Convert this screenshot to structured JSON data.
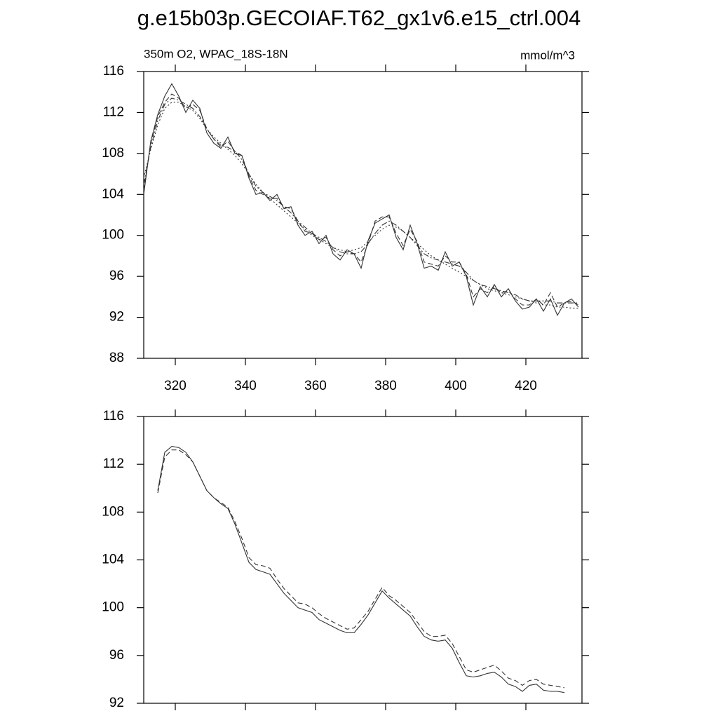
{
  "title": "g.e15b03p.GECOIAF.T62_gx1v6.e15_ctrl.004",
  "chart_data": [
    {
      "type": "line",
      "subtitle_left": "350m O2, WPAC_18S-18N",
      "subtitle_right": "mmol/m^3",
      "xlim": [
        311,
        436
      ],
      "ylim": [
        88,
        116
      ],
      "xticks": [
        320,
        340,
        360,
        380,
        400,
        420
      ],
      "yticks": [
        88,
        92,
        96,
        100,
        104,
        108,
        112,
        116
      ],
      "show_xtick_labels": true,
      "x": [
        311,
        313,
        315,
        317,
        319,
        321,
        323,
        325,
        327,
        329,
        331,
        333,
        335,
        337,
        339,
        341,
        343,
        345,
        347,
        349,
        351,
        353,
        355,
        357,
        359,
        361,
        363,
        365,
        367,
        369,
        371,
        373,
        375,
        377,
        379,
        381,
        383,
        385,
        387,
        389,
        391,
        393,
        395,
        397,
        399,
        401,
        403,
        405,
        407,
        409,
        411,
        413,
        415,
        417,
        419,
        421,
        423,
        425,
        427,
        429,
        431,
        433,
        435
      ],
      "series": [
        {
          "color": "#333333",
          "dash": "none",
          "values": [
            104.0,
            109.2,
            111.8,
            113.6,
            114.8,
            113.6,
            112.0,
            113.2,
            112.4,
            110.0,
            109.0,
            108.5,
            109.6,
            108.0,
            107.8,
            105.6,
            104.0,
            104.2,
            103.4,
            104.0,
            102.6,
            102.8,
            101.0,
            100.0,
            100.4,
            99.2,
            100.0,
            98.2,
            97.6,
            98.6,
            98.2,
            96.8,
            99.5,
            101.2,
            101.6,
            102.0,
            99.8,
            98.6,
            101.0,
            99.2,
            96.8,
            97.0,
            96.6,
            98.4,
            97.0,
            97.4,
            96.0,
            93.2,
            95.0,
            94.0,
            95.2,
            94.0,
            94.8,
            93.6,
            92.8,
            93.0,
            93.8,
            92.6,
            93.8,
            92.2,
            93.4,
            93.8,
            93.0
          ]
        },
        {
          "color": "#333333",
          "dash": "7,4",
          "values": [
            104.4,
            109.0,
            111.6,
            113.0,
            113.8,
            113.4,
            112.4,
            112.8,
            112.2,
            110.4,
            109.4,
            108.6,
            109.2,
            108.2,
            107.8,
            105.8,
            104.4,
            104.0,
            103.6,
            103.6,
            102.8,
            102.6,
            101.4,
            100.4,
            100.2,
            99.6,
            99.8,
            98.6,
            98.0,
            98.4,
            98.2,
            97.4,
            99.2,
            101.4,
            101.8,
            101.8,
            100.2,
            99.0,
            100.6,
            99.4,
            97.4,
            97.2,
            97.0,
            98.0,
            97.4,
            97.4,
            96.2,
            94.0,
            94.8,
            94.4,
            95.0,
            94.4,
            94.6,
            93.8,
            93.2,
            93.2,
            93.8,
            93.2,
            94.4,
            93.0,
            93.4,
            93.6,
            93.2
          ]
        },
        {
          "color": "#333333",
          "dash": "8,3,2,3",
          "values": [
            105.0,
            108.6,
            111.2,
            112.8,
            113.4,
            113.2,
            112.8,
            112.4,
            111.6,
            110.4,
            109.4,
            108.8,
            108.6,
            108.2,
            107.4,
            106.0,
            104.8,
            104.2,
            103.8,
            103.4,
            102.8,
            102.2,
            101.4,
            100.8,
            100.2,
            99.8,
            99.4,
            98.8,
            98.4,
            98.2,
            98.2,
            98.4,
            99.2,
            100.2,
            101.0,
            101.4,
            101.0,
            100.4,
            99.8,
            99.0,
            98.2,
            97.8,
            97.6,
            97.4,
            97.2,
            97.0,
            96.4,
            95.6,
            95.2,
            95.0,
            94.8,
            94.6,
            94.4,
            94.2,
            93.8,
            93.6,
            93.6,
            93.6,
            93.6,
            93.4,
            93.4,
            93.4,
            93.4
          ]
        },
        {
          "color": "#333333",
          "dash": "2,3",
          "values": [
            105.6,
            108.4,
            110.8,
            112.4,
            113.0,
            113.0,
            112.6,
            112.2,
            111.4,
            110.4,
            109.6,
            109.0,
            108.4,
            107.8,
            107.0,
            106.0,
            105.0,
            104.2,
            103.6,
            103.0,
            102.4,
            101.8,
            101.2,
            100.6,
            100.0,
            99.6,
            99.2,
            98.8,
            98.6,
            98.4,
            98.6,
            98.8,
            99.4,
            100.0,
            100.6,
            101.0,
            100.8,
            100.4,
            99.8,
            99.2,
            98.6,
            98.0,
            97.6,
            97.2,
            96.8,
            96.4,
            96.0,
            95.6,
            95.2,
            94.8,
            94.6,
            94.4,
            94.2,
            94.0,
            93.8,
            93.6,
            93.4,
            93.2,
            93.2,
            93.0,
            93.0,
            92.9,
            92.9
          ]
        }
      ]
    },
    {
      "type": "line",
      "xlim": [
        311,
        436
      ],
      "ylim": [
        92,
        116
      ],
      "xticks": [
        320,
        340,
        360,
        380,
        400,
        420
      ],
      "yticks": [
        92,
        96,
        100,
        104,
        108,
        112,
        116
      ],
      "show_xtick_labels": false,
      "x": [
        315,
        317,
        319,
        321,
        323,
        325,
        327,
        329,
        331,
        333,
        335,
        337,
        339,
        341,
        343,
        345,
        347,
        349,
        351,
        353,
        355,
        357,
        359,
        361,
        363,
        365,
        367,
        369,
        371,
        373,
        375,
        377,
        379,
        381,
        383,
        385,
        387,
        389,
        391,
        393,
        395,
        397,
        399,
        401,
        403,
        405,
        407,
        409,
        411,
        413,
        415,
        417,
        419,
        421,
        423,
        425,
        427,
        429,
        431
      ],
      "series": [
        {
          "color": "#333333",
          "dash": "none",
          "values": [
            109.8,
            113.0,
            113.5,
            113.4,
            113.0,
            112.2,
            111.0,
            109.8,
            109.2,
            108.7,
            108.3,
            107.0,
            105.4,
            103.8,
            103.2,
            103.0,
            102.8,
            102.0,
            101.2,
            100.6,
            100.0,
            99.8,
            99.6,
            99.0,
            98.7,
            98.4,
            98.1,
            97.9,
            97.9,
            98.6,
            99.4,
            100.4,
            101.4,
            100.8,
            100.3,
            99.8,
            99.3,
            98.4,
            97.6,
            97.3,
            97.2,
            97.3,
            96.6,
            95.4,
            94.3,
            94.2,
            94.3,
            94.5,
            94.6,
            94.2,
            93.6,
            93.4,
            93.0,
            93.5,
            93.6,
            93.1,
            93.0,
            93.0,
            92.9
          ]
        },
        {
          "color": "#333333",
          "dash": "7,4",
          "values": [
            109.6,
            112.6,
            113.2,
            113.2,
            112.8,
            112.2,
            111.0,
            109.8,
            109.2,
            108.8,
            108.4,
            107.2,
            105.8,
            104.2,
            103.6,
            103.5,
            103.3,
            102.4,
            101.6,
            101.0,
            100.4,
            100.3,
            100.0,
            99.5,
            99.1,
            98.8,
            98.5,
            98.2,
            98.3,
            99.0,
            99.7,
            100.7,
            101.7,
            101.0,
            100.6,
            100.1,
            99.6,
            98.8,
            98.0,
            97.6,
            97.6,
            97.7,
            97.0,
            95.9,
            94.8,
            94.6,
            94.8,
            95.0,
            95.2,
            94.7,
            94.1,
            93.9,
            93.5,
            93.9,
            94.0,
            93.6,
            93.5,
            93.4,
            93.3
          ]
        }
      ]
    }
  ]
}
